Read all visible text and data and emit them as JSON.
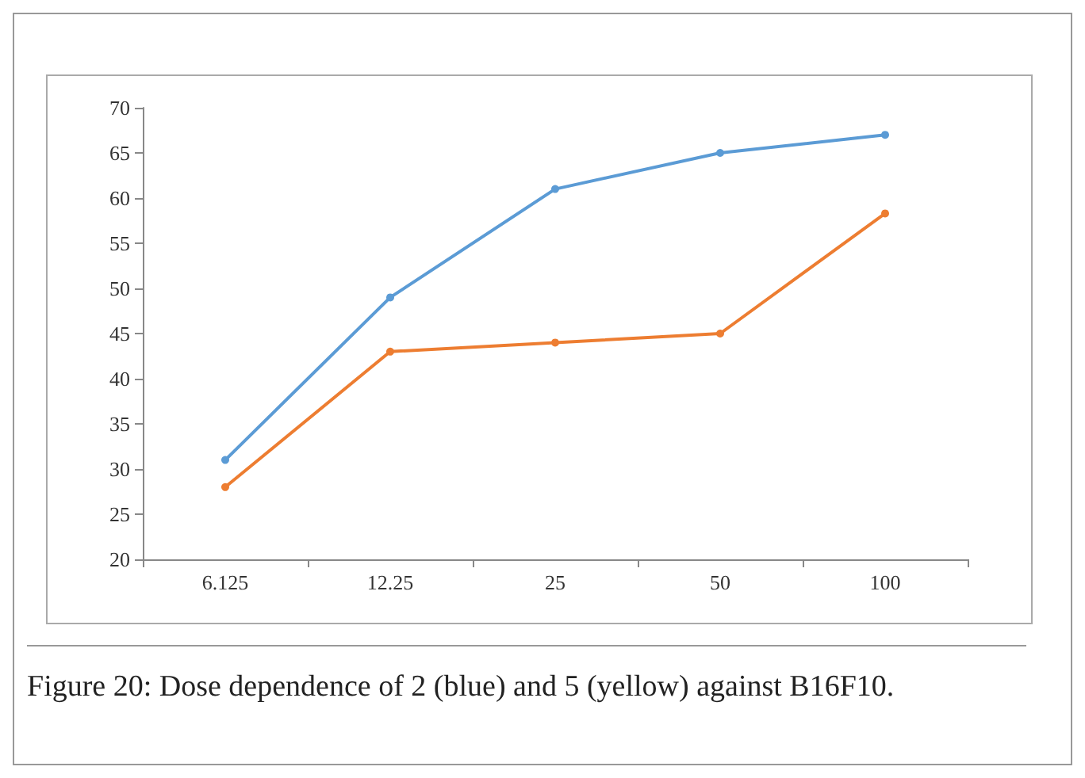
{
  "chart_data": {
    "type": "line",
    "categories": [
      "6.125",
      "12.25",
      "25",
      "50",
      "100"
    ],
    "series": [
      {
        "color": "#5b9bd5",
        "values": [
          31,
          49,
          61,
          65,
          67
        ]
      },
      {
        "color": "#ed7d31",
        "values": [
          28,
          43,
          44,
          45,
          58.3
        ]
      }
    ],
    "ylim": [
      20,
      70
    ],
    "yticks": [
      20,
      25,
      30,
      35,
      40,
      45,
      50,
      55,
      60,
      65,
      70
    ],
    "grid": false,
    "marker": "circle",
    "line_style": "solid",
    "annotations": [
      "Figure 20: Dose dependence of 2 (blue) and 5 (yellow) against B16F10."
    ]
  }
}
